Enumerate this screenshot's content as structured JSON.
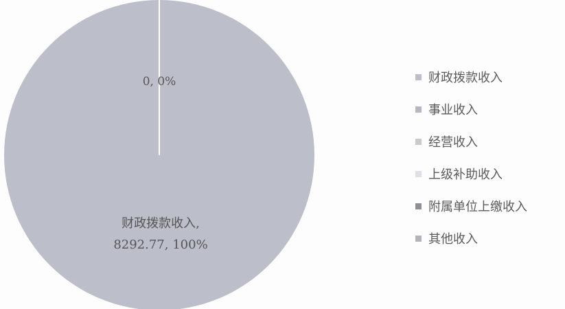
{
  "chart_data": {
    "type": "pie",
    "slices": [
      {
        "name": "财政拨款收入",
        "value": 8292.77,
        "color": "#bcbfca"
      },
      {
        "name": "事业收入",
        "value": 0,
        "color": "#b5b8c1"
      },
      {
        "name": "经营收入",
        "value": 0,
        "color": "#c8cad0"
      },
      {
        "name": "上级补助收入",
        "value": 0,
        "color": "#dde0e5"
      },
      {
        "name": "附属单位上缴收入",
        "value": 0,
        "color": "#8e9095"
      },
      {
        "name": "其他收入",
        "value": 0,
        "color": "#b2b4ba"
      }
    ],
    "data_labels": [
      {
        "line1": "财政拨款收入,",
        "line2": "8292.77, 100%"
      },
      {
        "line1": "0, 0%"
      }
    ],
    "legend_position": "right"
  }
}
